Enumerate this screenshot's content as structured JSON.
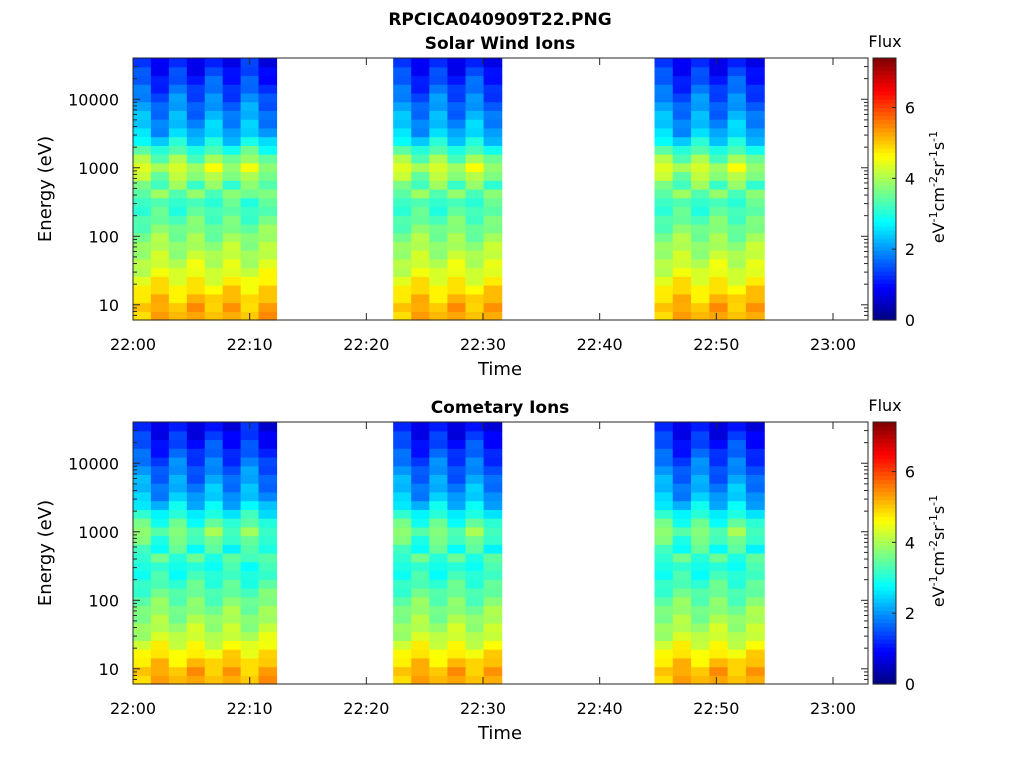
{
  "figure_title": "RPCICA040909T22.PNG",
  "chart_data": [
    {
      "type": "heatmap",
      "title": "Solar Wind Ions",
      "xlabel": "Time",
      "ylabel": "Energy (eV)",
      "x_ticks": [
        "22:00",
        "22:10",
        "22:20",
        "22:30",
        "22:40",
        "22:50",
        "23:00"
      ],
      "xlim_minutes": [
        0,
        63
      ],
      "y_scale": "log",
      "y_ticks": [
        10,
        100,
        1000,
        10000
      ],
      "ylim": [
        6,
        40000
      ],
      "colorbar": {
        "title": "Flux",
        "label": "eV-1cm-2sr-1s-1",
        "ticks": [
          0,
          2,
          4,
          6
        ],
        "range": [
          0,
          7.4
        ],
        "colormap": "jet"
      },
      "data_blocks": [
        {
          "start": "22:00",
          "end": "22:12.3",
          "cycles": 4
        },
        {
          "start": "22:22.3",
          "end": "22:31.6",
          "cycles": 3
        },
        {
          "start": "22:44.7",
          "end": "22:54.1",
          "cycles": 3
        }
      ],
      "flux_profile": [
        {
          "energy_eV": 10,
          "flux": 5.0
        },
        {
          "energy_eV": 30,
          "flux": 4.2
        },
        {
          "energy_eV": 100,
          "flux": 3.6
        },
        {
          "energy_eV": 300,
          "flux": 3.0
        },
        {
          "energy_eV": 1000,
          "flux": 4.5
        },
        {
          "energy_eV": 3000,
          "flux": 2.6
        },
        {
          "energy_eV": 10000,
          "flux": 2.0
        },
        {
          "energy_eV": 40000,
          "flux": 1.2
        }
      ]
    },
    {
      "type": "heatmap",
      "title": "Cometary Ions",
      "xlabel": "Time",
      "ylabel": "Energy (eV)",
      "x_ticks": [
        "22:00",
        "22:10",
        "22:20",
        "22:30",
        "22:40",
        "22:50",
        "23:00"
      ],
      "xlim_minutes": [
        0,
        63
      ],
      "y_scale": "log",
      "y_ticks": [
        10,
        100,
        1000,
        10000
      ],
      "ylim": [
        6,
        40000
      ],
      "colorbar": {
        "title": "Flux",
        "label": "eV-1cm-2sr-1s-1",
        "ticks": [
          0,
          2,
          4,
          6
        ],
        "range": [
          0,
          7.4
        ],
        "colormap": "jet"
      },
      "data_blocks": [
        {
          "start": "22:00",
          "end": "22:12.3",
          "cycles": 4
        },
        {
          "start": "22:22.3",
          "end": "22:31.6",
          "cycles": 3
        },
        {
          "start": "22:44.7",
          "end": "22:54.1",
          "cycles": 3
        }
      ],
      "flux_profile": [
        {
          "energy_eV": 10,
          "flux": 5.0
        },
        {
          "energy_eV": 30,
          "flux": 4.0
        },
        {
          "energy_eV": 100,
          "flux": 3.4
        },
        {
          "energy_eV": 300,
          "flux": 2.8
        },
        {
          "energy_eV": 1000,
          "flux": 3.9
        },
        {
          "energy_eV": 3000,
          "flux": 2.5
        },
        {
          "energy_eV": 10000,
          "flux": 1.9
        },
        {
          "energy_eV": 40000,
          "flux": 1.1
        }
      ]
    }
  ]
}
